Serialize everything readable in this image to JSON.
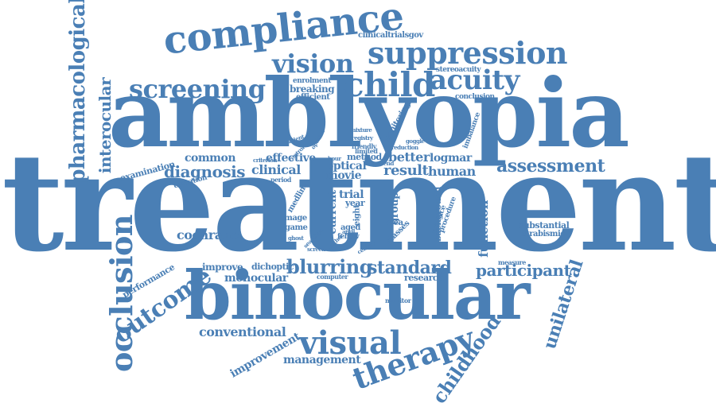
{
  "color": "#4a7fb5",
  "words": [
    {
      "id": "treatment",
      "text": "treatment"
    },
    {
      "id": "amblyopia",
      "text": "amblyopia"
    },
    {
      "id": "binocular",
      "text": "binocular"
    },
    {
      "id": "compliance",
      "text": "compliance"
    },
    {
      "id": "suppression",
      "text": "suppression"
    },
    {
      "id": "vision",
      "text": "vision"
    },
    {
      "id": "child",
      "text": "child"
    },
    {
      "id": "acuity",
      "text": "acuity"
    },
    {
      "id": "screening",
      "text": "screening"
    },
    {
      "id": "pharmacological",
      "text": "pharmacological"
    },
    {
      "id": "interocular",
      "text": "interocular"
    },
    {
      "id": "occlusion",
      "text": "occlusion"
    },
    {
      "id": "outcome",
      "text": "outcome"
    },
    {
      "id": "visual",
      "text": "visual"
    },
    {
      "id": "therapy",
      "text": "therapy"
    },
    {
      "id": "childhood",
      "text": "childhood"
    },
    {
      "id": "unilateral",
      "text": "unilateral"
    },
    {
      "id": "blurring",
      "text": "blurring"
    },
    {
      "id": "standard",
      "text": "standard"
    },
    {
      "id": "participant",
      "text": "participant"
    },
    {
      "id": "assessment",
      "text": "assessment"
    },
    {
      "id": "diagnosis",
      "text": "diagnosis"
    },
    {
      "id": "clinical",
      "text": "clinical"
    },
    {
      "id": "common",
      "text": "common"
    },
    {
      "id": "effective",
      "text": "effective"
    },
    {
      "id": "cochrane",
      "text": "cochrane"
    },
    {
      "id": "conventional",
      "text": "conventional"
    },
    {
      "id": "improvement",
      "text": "improvement"
    },
    {
      "id": "management",
      "text": "management"
    },
    {
      "id": "monocular",
      "text": "monocular"
    },
    {
      "id": "improve",
      "text": "improve"
    },
    {
      "id": "dichoptic",
      "text": "dichoptic"
    },
    {
      "id": "performance",
      "text": "performance"
    },
    {
      "id": "examination",
      "text": "examination"
    },
    {
      "id": "cessation",
      "text": "cessation"
    },
    {
      "id": "clinicaltrialsgov",
      "text": "clinicaltrialsgov"
    },
    {
      "id": "stereoacuity",
      "text": "stereoacuity"
    },
    {
      "id": "conclusion",
      "text": "conclusion"
    },
    {
      "id": "enrolment",
      "text": "enrolment"
    },
    {
      "id": "breaking",
      "text": "breaking"
    },
    {
      "id": "efficient",
      "text": "efficient"
    },
    {
      "id": "better",
      "text": "better"
    },
    {
      "id": "result",
      "text": "result"
    },
    {
      "id": "human",
      "text": "human"
    },
    {
      "id": "logmar",
      "text": "logmar"
    },
    {
      "id": "optical",
      "text": "optical"
    },
    {
      "id": "movie",
      "text": "movie"
    },
    {
      "id": "method",
      "text": "method"
    },
    {
      "id": "function",
      "text": "function"
    },
    {
      "id": "substantial",
      "text": "substantial"
    },
    {
      "id": "strabismic",
      "text": "strabismic"
    },
    {
      "id": "measure",
      "text": "measure"
    },
    {
      "id": "research",
      "text": "research"
    },
    {
      "id": "computer",
      "text": "computer"
    },
    {
      "id": "monitor",
      "text": "monitor"
    },
    {
      "id": "current",
      "text": "current"
    },
    {
      "id": "group",
      "text": "group"
    },
    {
      "id": "background",
      "text": "background"
    },
    {
      "id": "practice",
      "text": "practice"
    },
    {
      "id": "procedure",
      "text": "procedure"
    },
    {
      "id": "glasses",
      "text": "glasses"
    },
    {
      "id": "area",
      "text": "area"
    },
    {
      "id": "trial",
      "text": "trial"
    },
    {
      "id": "year",
      "text": "year"
    },
    {
      "id": "eight",
      "text": "eight"
    },
    {
      "id": "aged",
      "text": "aged"
    },
    {
      "id": "fellow",
      "text": "fellow"
    },
    {
      "id": "image",
      "text": "image"
    },
    {
      "id": "game",
      "text": "game"
    },
    {
      "id": "medline",
      "text": "medline"
    },
    {
      "id": "period",
      "text": "period"
    },
    {
      "id": "criterion",
      "text": "criterion"
    },
    {
      "id": "monitoring",
      "text": "monitoring"
    },
    {
      "id": "imbalance",
      "text": "imbalance"
    },
    {
      "id": "mixture",
      "text": "mixture"
    },
    {
      "id": "registry",
      "text": "registry"
    },
    {
      "id": "friendly",
      "text": "friendly"
    },
    {
      "id": "limited",
      "text": "limited"
    },
    {
      "id": "goggle",
      "text": "goggle"
    },
    {
      "id": "reduction",
      "text": "reduction"
    },
    {
      "id": "trend",
      "text": "trend"
    },
    {
      "id": "hour",
      "text": "hour"
    },
    {
      "id": "patient",
      "text": "patient"
    },
    {
      "id": "optimal",
      "text": "optimal"
    },
    {
      "id": "control",
      "text": "control"
    },
    {
      "id": "ghost",
      "text": "ghost"
    },
    {
      "id": "screen",
      "text": "screen"
    },
    {
      "id": "central",
      "text": "central"
    },
    {
      "id": "searched",
      "text": "searched"
    },
    {
      "id": "author",
      "text": "author"
    },
    {
      "id": "april",
      "text": "april"
    }
  ]
}
